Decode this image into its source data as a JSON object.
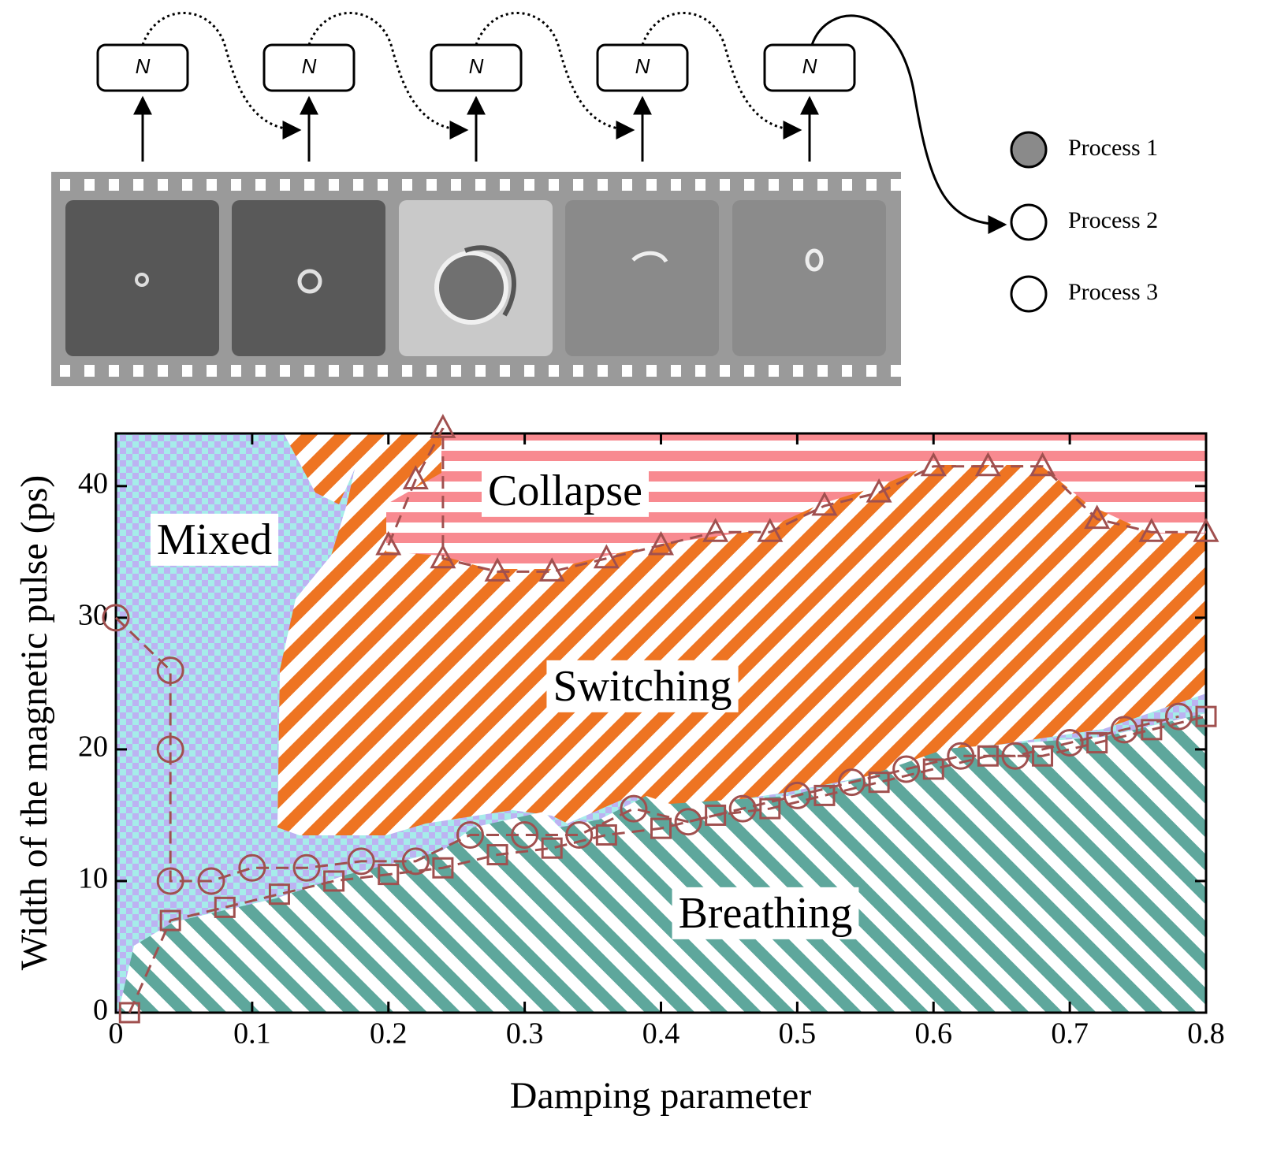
{
  "diagram": {
    "nodes": [
      "N",
      "N",
      "N",
      "N",
      "N"
    ],
    "legend": [
      "Process 1",
      "Process 2",
      "Process 3"
    ]
  },
  "chart_data": {
    "type": "scatter",
    "xlabel": "Damping parameter",
    "ylabel": "Width of the magnetic pulse (ps)",
    "xlim": [
      0,
      0.8
    ],
    "ylim": [
      0,
      44
    ],
    "xticks": [
      0,
      0.1,
      0.2,
      0.3,
      0.4,
      0.5,
      0.6,
      0.7,
      0.8
    ],
    "yticks": [
      0,
      10,
      20,
      30,
      40
    ],
    "annotations": [
      "Mixed",
      "Collapse",
      "Switching",
      "Breathing"
    ],
    "series": [
      {
        "marker": "triangle",
        "color": "#a0504f",
        "x": [
          0.2,
          0.22,
          0.24,
          0.24,
          0.28,
          0.32,
          0.36,
          0.4,
          0.44,
          0.48,
          0.52,
          0.56,
          0.6,
          0.64,
          0.68,
          0.72,
          0.76,
          0.8
        ],
        "values": [
          35.5,
          40.5,
          44.4,
          34.5,
          33.5,
          33.5,
          34.5,
          35.5,
          36.5,
          36.5,
          38.5,
          39.5,
          41.5,
          41.5,
          41.5,
          37.5,
          36.5,
          36.5
        ]
      },
      {
        "marker": "circle",
        "color": "#a0504f",
        "x": [
          0,
          0.04,
          0.04,
          0.04,
          0.07,
          0.1,
          0.14,
          0.18,
          0.22,
          0.26,
          0.3,
          0.34,
          0.38,
          0.42,
          0.46,
          0.5,
          0.54,
          0.58,
          0.62,
          0.66,
          0.7,
          0.74,
          0.78
        ],
        "values": [
          30,
          26,
          20,
          10,
          10,
          11,
          11,
          11.5,
          11.5,
          13.5,
          13.5,
          13.5,
          15.5,
          14.5,
          15.5,
          16.5,
          17.5,
          18.5,
          19.5,
          19.5,
          20.5,
          21.5,
          22.5
        ]
      },
      {
        "marker": "square",
        "color": "#a0504f",
        "x": [
          0.01,
          0.04,
          0.08,
          0.12,
          0.16,
          0.2,
          0.24,
          0.28,
          0.32,
          0.36,
          0.4,
          0.44,
          0.48,
          0.52,
          0.56,
          0.6,
          0.64,
          0.68,
          0.72,
          0.76,
          0.8
        ],
        "values": [
          0,
          7,
          8,
          9,
          10,
          10.5,
          11,
          12,
          12.5,
          13.5,
          14,
          15,
          15.5,
          16.5,
          17.5,
          18.5,
          19.5,
          19.5,
          20.5,
          21.5,
          22.5
        ]
      }
    ]
  }
}
